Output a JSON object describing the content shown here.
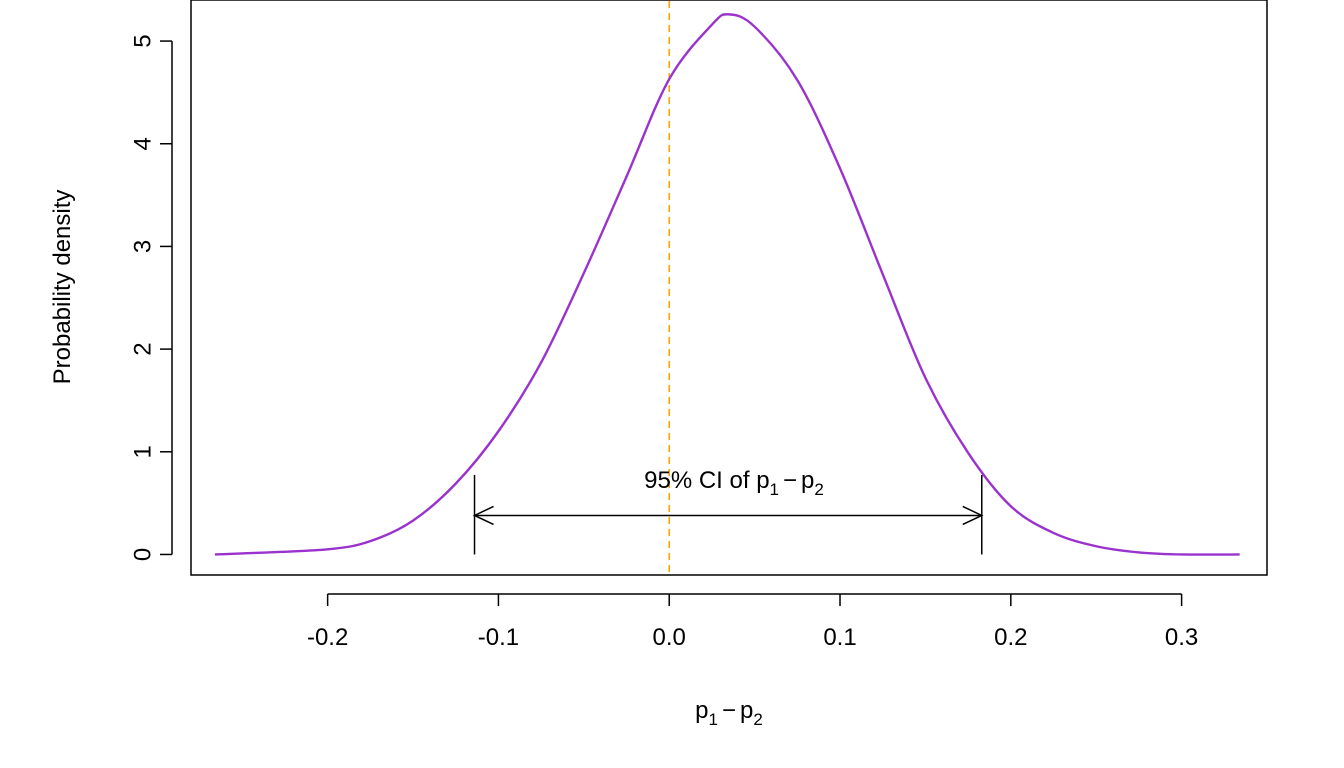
{
  "chart_data": {
    "type": "line",
    "title": "",
    "xlabel": {
      "base": "p",
      "sub1": "1",
      "minus": "−",
      "base2": "p",
      "sub2": "2"
    },
    "ylabel": "Probability density",
    "xlim": [
      -0.28,
      0.35
    ],
    "ylim": [
      -0.2,
      5.4
    ],
    "x_ticks": [
      -0.2,
      -0.1,
      0.0,
      0.1,
      0.2,
      0.3
    ],
    "x_tick_labels": [
      "-0.2",
      "-0.1",
      "0.0",
      "0.1",
      "0.2",
      "0.3"
    ],
    "y_ticks": [
      0,
      1,
      2,
      3,
      4,
      5
    ],
    "y_tick_labels": [
      "0",
      "1",
      "2",
      "3",
      "4",
      "5"
    ],
    "grid": false,
    "series": [
      {
        "color": "#9a32cd",
        "x": [
          -0.266,
          -0.25,
          -0.2,
          -0.175,
          -0.15,
          -0.125,
          -0.1,
          -0.075,
          -0.05,
          -0.025,
          0.0,
          0.025,
          0.035,
          0.05,
          0.075,
          0.1,
          0.125,
          0.15,
          0.175,
          0.2,
          0.225,
          0.25,
          0.275,
          0.3,
          0.334
        ],
        "y": [
          0.0,
          0.01,
          0.05,
          0.13,
          0.33,
          0.69,
          1.2,
          1.87,
          2.74,
          3.68,
          4.63,
          5.16,
          5.26,
          5.14,
          4.62,
          3.76,
          2.73,
          1.72,
          0.99,
          0.47,
          0.21,
          0.08,
          0.02,
          0.0,
          0.0
        ]
      }
    ],
    "reference_line": {
      "x": 0.0,
      "color": "#ffa500",
      "style": "dashed"
    },
    "ci": {
      "lower": -0.114,
      "upper": 0.183,
      "y": 0.38,
      "color": "#000000"
    },
    "annotation": {
      "text": "95% CI of ",
      "base": "p",
      "sub1": "1",
      "minus": "−",
      "base2": "p",
      "sub2": "2"
    }
  }
}
